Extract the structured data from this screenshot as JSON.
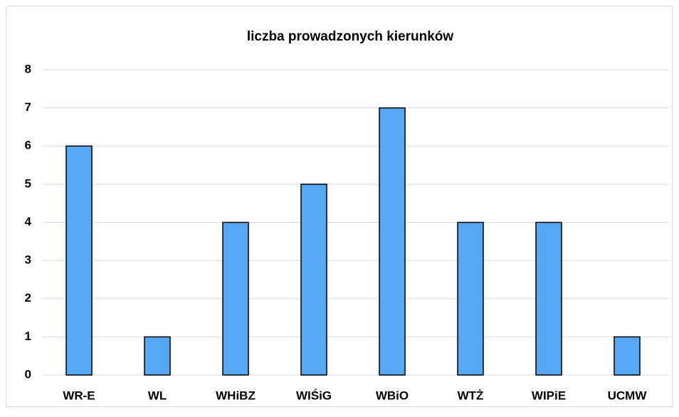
{
  "chart_data": {
    "type": "bar",
    "title": "liczba prowadzonych kierunków",
    "categories": [
      "WR-E",
      "WL",
      "WHiBZ",
      "WIŚiG",
      "WBiO",
      "WTŻ",
      "WIPiE",
      "UCMW"
    ],
    "values": [
      6,
      1,
      4,
      5,
      7,
      4,
      4,
      1
    ],
    "color": "#56a8f5",
    "ylim": [
      0,
      8
    ],
    "yticks": [
      0,
      1,
      2,
      3,
      4,
      5,
      6,
      7,
      8
    ],
    "grid": true
  }
}
